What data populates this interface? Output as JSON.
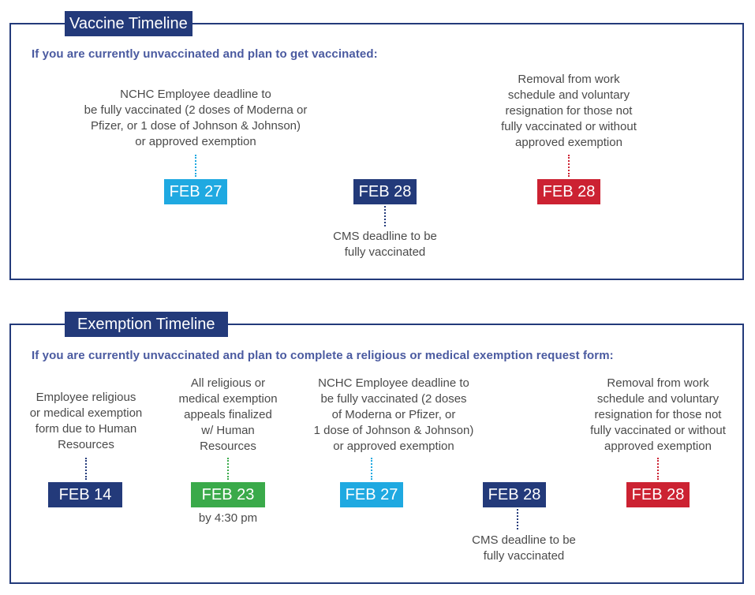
{
  "vaccine": {
    "title": "Vaccine Timeline",
    "subtitle": "If you are currently unvaccinated and plan to get vaccinated:",
    "items": [
      {
        "date": "FEB 27",
        "color": "#1fa9e1",
        "desc": "NCHC Employee deadline to\nbe fully vaccinated (2 doses of Moderna or\nPfizer, or 1 dose of Johnson & Johnson)\nor approved exemption",
        "position": "above"
      },
      {
        "date": "FEB 28",
        "color": "#233a7a",
        "desc": "CMS deadline to be\nfully vaccinated",
        "position": "below"
      },
      {
        "date": "FEB 28",
        "color": "#cc2232",
        "desc": "Removal from work\nschedule and voluntary\nresignation for those not\nfully vaccinated or without\napproved exemption",
        "position": "above"
      }
    ]
  },
  "exemption": {
    "title": "Exemption Timeline",
    "subtitle": "If you are currently unvaccinated and plan to complete a religious or medical exemption request form:",
    "items": [
      {
        "date": "FEB 14",
        "color": "#233a7a",
        "desc": "Employee religious\nor medical exemption\nform due to Human\nResources",
        "position": "above"
      },
      {
        "date": "FEB 23",
        "color": "#3aaa4a",
        "desc": "All religious or\nmedical exemption\nappeals finalized\nw/ Human\nResources",
        "position": "above",
        "note": "by 4:30 pm"
      },
      {
        "date": "FEB 27",
        "color": "#1fa9e1",
        "desc": "NCHC Employee deadline to\nbe fully vaccinated (2 doses\nof Moderna or Pfizer, or\n1 dose of Johnson & Johnson)\nor approved exemption",
        "position": "above"
      },
      {
        "date": "FEB 28",
        "color": "#233a7a",
        "desc": "CMS deadline to be\nfully vaccinated",
        "position": "below"
      },
      {
        "date": "FEB 28",
        "color": "#cc2232",
        "desc": "Removal from work\nschedule and voluntary\nresignation for those not\nfully vaccinated or without\napproved exemption",
        "position": "above"
      }
    ]
  }
}
